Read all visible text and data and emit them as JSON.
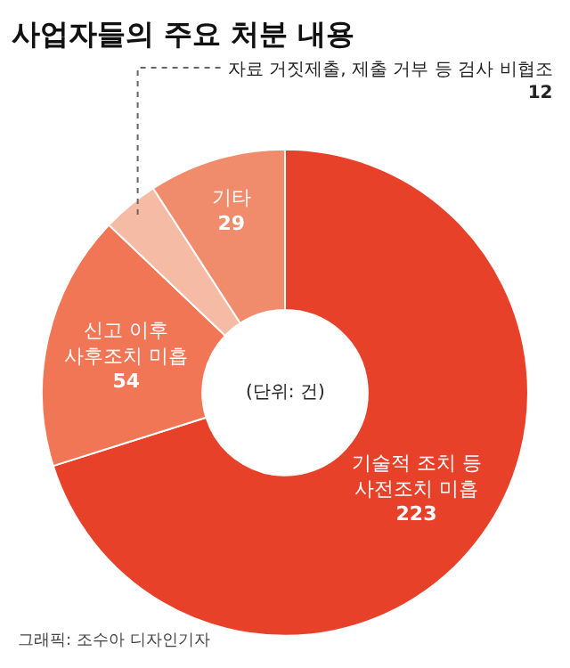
{
  "chart_data": {
    "type": "donut",
    "title": "사업자들의 주요 처분 내용",
    "categories": [
      "기술적 조치 등\n사전조치 미흡",
      "신고 이후\n사후조치 미흡",
      "자료 거짓제출, 제출 거부 등 검사 비협조",
      "기타"
    ],
    "values": [
      223,
      54,
      12,
      29
    ],
    "colors": [
      "#e8412a",
      "#f07656",
      "#f6bba4",
      "#f08c6c"
    ],
    "data_labels": true,
    "annotations": [
      "(단위: 건)",
      "그래픽: 조수아 디자인기자"
    ],
    "legend": false
  }
}
